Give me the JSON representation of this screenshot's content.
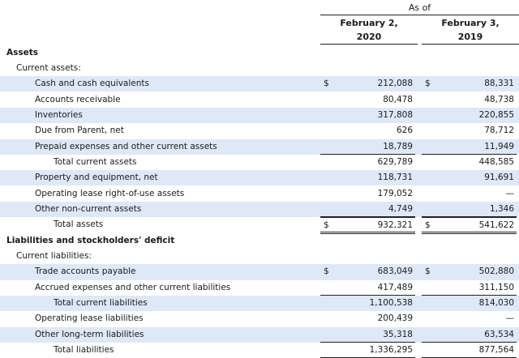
{
  "header": {
    "as_of": "As of",
    "col1_line1": "February 2,",
    "col1_line2": "2020",
    "col2_line1": "February 3,",
    "col2_line2": "2019"
  },
  "rows": [
    {
      "label": "Assets",
      "bold": true,
      "indent": 0
    },
    {
      "label": "Current assets:",
      "indent": 1
    },
    {
      "label": "Cash and cash equivalents",
      "indent": 2,
      "shade": true,
      "d1": "$",
      "v1": "212,088",
      "d2": "$",
      "v2": "88,331"
    },
    {
      "label": "Accounts receivable",
      "indent": 2,
      "v1": "80,478",
      "v2": "48,738"
    },
    {
      "label": "Inventories",
      "indent": 2,
      "shade": true,
      "v1": "317,808",
      "v2": "220,855"
    },
    {
      "label": "Due from Parent, net",
      "indent": 2,
      "v1": "626",
      "v2": "78,712"
    },
    {
      "label": "Prepaid expenses and other current assets",
      "indent": 2,
      "shade": true,
      "v1": "18,789",
      "v2": "11,949",
      "under": true
    },
    {
      "label": "Total current assets",
      "indent": 3,
      "v1": "629,789",
      "v2": "448,585"
    },
    {
      "label": "Property and equipment, net",
      "indent": 2,
      "shade": true,
      "v1": "118,731",
      "v2": "91,691"
    },
    {
      "label": "Operating lease right-of-use assets",
      "indent": 2,
      "v1": "179,052",
      "v2": "—"
    },
    {
      "label": "Other non-current assets",
      "indent": 2,
      "shade": true,
      "v1": "4,749",
      "v2": "1,346",
      "under": true
    },
    {
      "label": "Total assets",
      "indent": 3,
      "d1": "$",
      "v1": "932,321",
      "d2": "$",
      "v2": "541,622",
      "double": true
    },
    {
      "label": "Liabilities and stockholders' deficit",
      "bold": true,
      "indent": 0
    },
    {
      "label": "Current liabilities:",
      "indent": 1
    },
    {
      "label": "Trade accounts payable",
      "indent": 2,
      "shade": true,
      "d1": "$",
      "v1": "683,049",
      "d2": "$",
      "v2": "502,880"
    },
    {
      "label": "Accrued expenses and other current liabilities",
      "indent": 2,
      "v1": "417,489",
      "v2": "311,150",
      "under": true
    },
    {
      "label": "Total current liabilities",
      "indent": 3,
      "shade": true,
      "v1": "1,100,538",
      "v2": "814,030"
    },
    {
      "label": "Operating lease liabilities",
      "indent": 2,
      "v1": "200,439",
      "v2": "—"
    },
    {
      "label": "Other long-term liabilities",
      "indent": 2,
      "shade": true,
      "v1": "35,318",
      "v2": "63,534",
      "under": true
    },
    {
      "label": "Total liabilities",
      "indent": 3,
      "v1": "1,336,295",
      "v2": "877,564",
      "under": true
    }
  ]
}
